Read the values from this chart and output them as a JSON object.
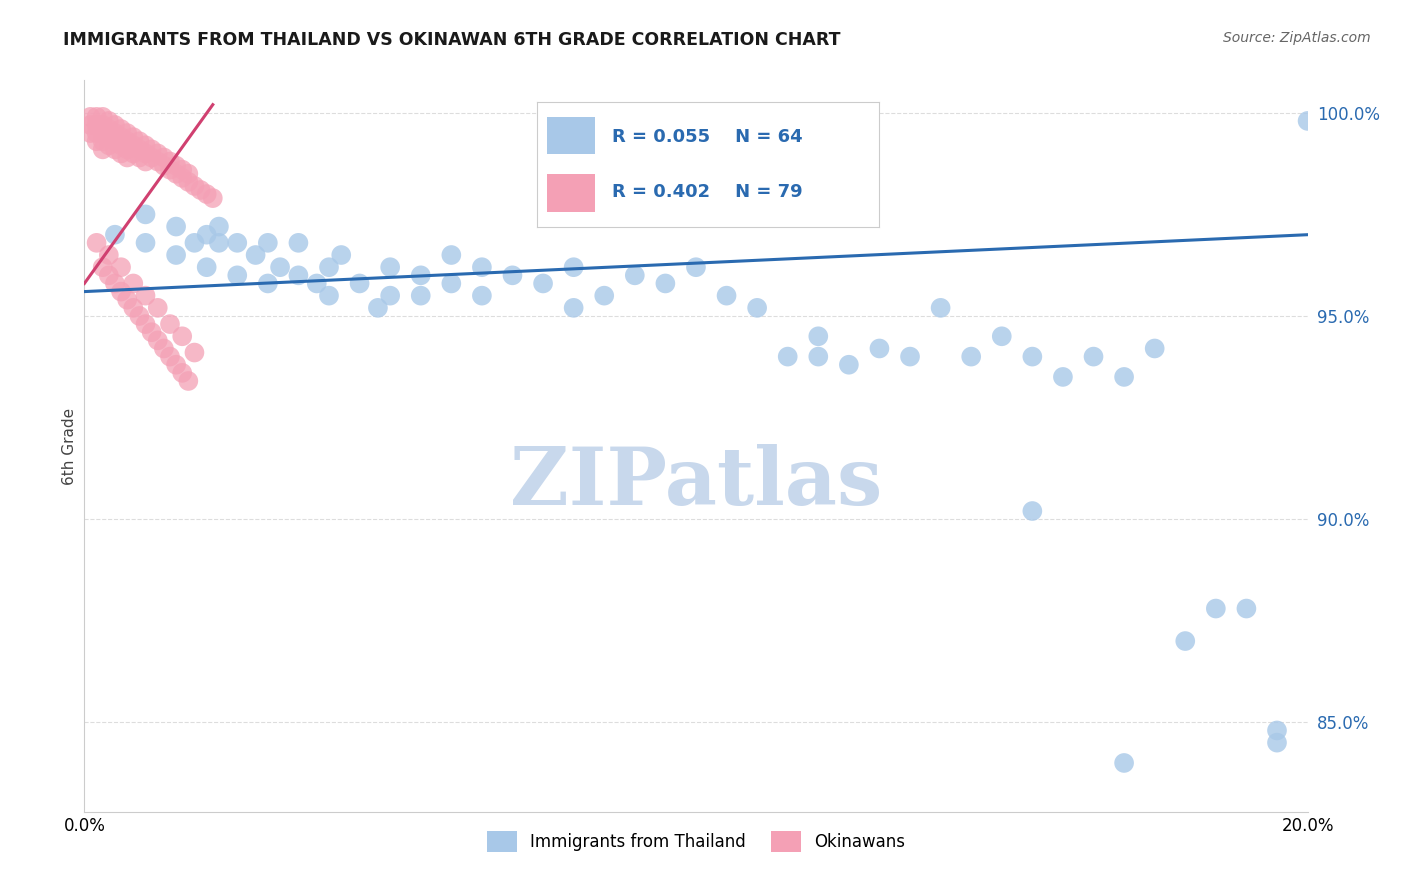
{
  "title": "IMMIGRANTS FROM THAILAND VS OKINAWAN 6TH GRADE CORRELATION CHART",
  "source": "Source: ZipAtlas.com",
  "ylabel": "6th Grade",
  "xlim": [
    0.0,
    0.2
  ],
  "ylim": [
    0.828,
    1.008
  ],
  "yticks": [
    0.85,
    0.9,
    0.95,
    1.0
  ],
  "ytick_labels": [
    "85.0%",
    "90.0%",
    "95.0%",
    "100.0%"
  ],
  "blue_R": "0.055",
  "blue_N": "64",
  "pink_R": "0.402",
  "pink_N": "79",
  "blue_color": "#a8c8e8",
  "pink_color": "#f4a0b5",
  "blue_line_color": "#2a6ab0",
  "pink_line_color": "#d04070",
  "watermark": "ZIPatlas",
  "watermark_color": "#c8d8ec",
  "legend_text_color": "#2a6ab0",
  "blue_scatter_x": [
    0.005,
    0.01,
    0.01,
    0.015,
    0.015,
    0.018,
    0.02,
    0.02,
    0.022,
    0.022,
    0.025,
    0.025,
    0.028,
    0.03,
    0.03,
    0.032,
    0.035,
    0.035,
    0.038,
    0.04,
    0.04,
    0.042,
    0.045,
    0.048,
    0.05,
    0.05,
    0.055,
    0.055,
    0.06,
    0.06,
    0.065,
    0.065,
    0.07,
    0.075,
    0.08,
    0.08,
    0.085,
    0.09,
    0.095,
    0.1,
    0.105,
    0.11,
    0.115,
    0.12,
    0.125,
    0.13,
    0.135,
    0.14,
    0.145,
    0.15,
    0.155,
    0.16,
    0.165,
    0.17,
    0.175,
    0.18,
    0.185,
    0.19,
    0.195,
    0.2,
    0.12,
    0.155,
    0.17,
    0.195
  ],
  "blue_scatter_y": [
    0.97,
    0.975,
    0.968,
    0.972,
    0.965,
    0.968,
    0.97,
    0.962,
    0.968,
    0.972,
    0.968,
    0.96,
    0.965,
    0.968,
    0.958,
    0.962,
    0.96,
    0.968,
    0.958,
    0.962,
    0.955,
    0.965,
    0.958,
    0.952,
    0.962,
    0.955,
    0.96,
    0.955,
    0.965,
    0.958,
    0.962,
    0.955,
    0.96,
    0.958,
    0.952,
    0.962,
    0.955,
    0.96,
    0.958,
    0.962,
    0.955,
    0.952,
    0.94,
    0.945,
    0.938,
    0.942,
    0.94,
    0.952,
    0.94,
    0.945,
    0.94,
    0.935,
    0.94,
    0.935,
    0.942,
    0.87,
    0.878,
    0.878,
    0.848,
    0.998,
    0.94,
    0.902,
    0.84,
    0.845
  ],
  "pink_scatter_x": [
    0.001,
    0.001,
    0.001,
    0.002,
    0.002,
    0.002,
    0.002,
    0.003,
    0.003,
    0.003,
    0.003,
    0.003,
    0.004,
    0.004,
    0.004,
    0.004,
    0.005,
    0.005,
    0.005,
    0.005,
    0.006,
    0.006,
    0.006,
    0.006,
    0.007,
    0.007,
    0.007,
    0.007,
    0.008,
    0.008,
    0.008,
    0.009,
    0.009,
    0.009,
    0.01,
    0.01,
    0.01,
    0.011,
    0.011,
    0.012,
    0.012,
    0.013,
    0.013,
    0.014,
    0.014,
    0.015,
    0.015,
    0.016,
    0.016,
    0.017,
    0.017,
    0.018,
    0.019,
    0.02,
    0.021,
    0.003,
    0.004,
    0.005,
    0.006,
    0.007,
    0.008,
    0.009,
    0.01,
    0.011,
    0.012,
    0.013,
    0.014,
    0.015,
    0.016,
    0.017,
    0.002,
    0.004,
    0.006,
    0.008,
    0.01,
    0.012,
    0.014,
    0.016,
    0.018
  ],
  "pink_scatter_y": [
    0.999,
    0.997,
    0.995,
    0.999,
    0.997,
    0.995,
    0.993,
    0.999,
    0.997,
    0.995,
    0.993,
    0.991,
    0.998,
    0.996,
    0.994,
    0.992,
    0.997,
    0.995,
    0.993,
    0.991,
    0.996,
    0.994,
    0.992,
    0.99,
    0.995,
    0.993,
    0.991,
    0.989,
    0.994,
    0.992,
    0.99,
    0.993,
    0.991,
    0.989,
    0.992,
    0.99,
    0.988,
    0.991,
    0.989,
    0.99,
    0.988,
    0.989,
    0.987,
    0.988,
    0.986,
    0.987,
    0.985,
    0.986,
    0.984,
    0.985,
    0.983,
    0.982,
    0.981,
    0.98,
    0.979,
    0.962,
    0.96,
    0.958,
    0.956,
    0.954,
    0.952,
    0.95,
    0.948,
    0.946,
    0.944,
    0.942,
    0.94,
    0.938,
    0.936,
    0.934,
    0.968,
    0.965,
    0.962,
    0.958,
    0.955,
    0.952,
    0.948,
    0.945,
    0.941
  ],
  "blue_trend_x": [
    0.0,
    0.2
  ],
  "blue_trend_y": [
    0.956,
    0.97
  ],
  "pink_trend_x": [
    0.0,
    0.021
  ],
  "pink_trend_y": [
    0.958,
    1.002
  ]
}
